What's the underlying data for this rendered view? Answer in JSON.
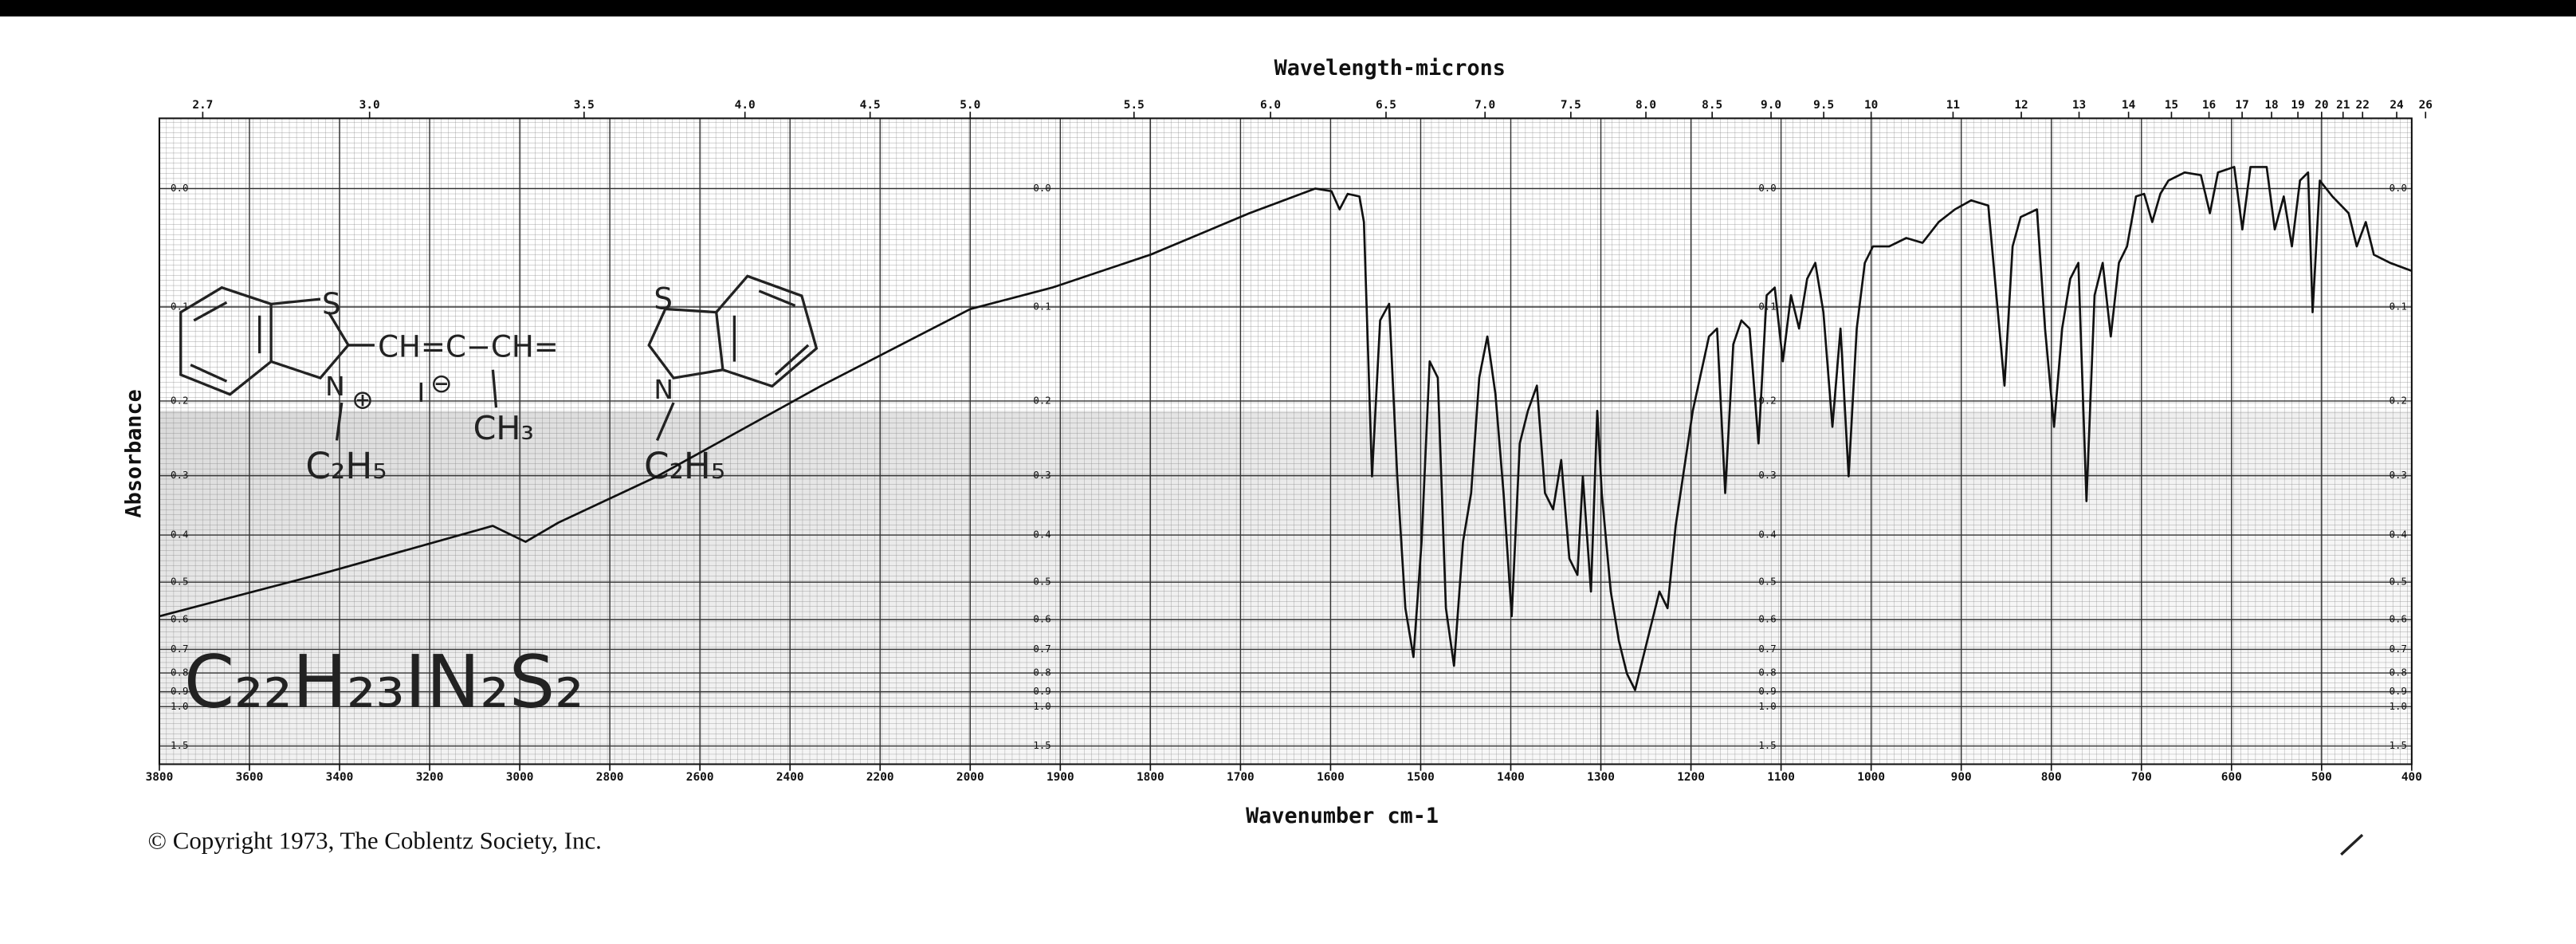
{
  "chart_data": {
    "type": "line",
    "title": "Wavelength-microns",
    "xlabel": "Wavenumber cm-1",
    "ylabel": "Absorbance",
    "footer": "© Copyright 1973, The Coblentz Society, Inc.",
    "structure": {
      "sulfur": "S",
      "nitrogen": "N",
      "cation": "⊕",
      "anion": "⊖",
      "iodide": "I",
      "bridge": "CH=C−CH=",
      "methyl": "CH₃",
      "ethyl": "C₂H₅",
      "formula": "C₂₂H₂₃IN₂S₂"
    },
    "color": "#111111",
    "grid": true,
    "xlim": [
      3800,
      400
    ],
    "xscale_break": 2000,
    "xticks": [
      3800,
      3600,
      3400,
      3200,
      3000,
      2800,
      2600,
      2400,
      2200,
      2000,
      1900,
      1800,
      1700,
      1600,
      1500,
      1400,
      1300,
      1200,
      1100,
      1000,
      900,
      800,
      700,
      600,
      500,
      400
    ],
    "x2ticks": [
      2.7,
      {
        "value": 3,
        "label": "3.0"
      },
      3.5,
      {
        "value": 4,
        "label": "4.0"
      },
      4.5,
      {
        "value": 5,
        "label": "5.0"
      },
      5.5,
      {
        "value": 6,
        "label": "6.0"
      },
      6.5,
      {
        "value": 7,
        "label": "7.0"
      },
      7.5,
      {
        "value": 8,
        "label": "8.0"
      },
      8.5,
      {
        "value": 9,
        "label": "9.0"
      },
      9.5,
      10,
      11,
      12,
      13,
      14,
      15,
      16,
      17,
      18,
      19,
      20,
      21,
      22,
      24,
      26
    ],
    "yscale": "absorbance",
    "ylim": [
      -0.05,
      2
    ],
    "yticks": [
      {
        "value": 0,
        "label": "0.0"
      },
      0.1,
      0.2,
      0.3,
      0.4,
      0.5,
      0.6,
      0.7,
      0.8,
      0.9,
      {
        "value": 1,
        "label": "1.0"
      },
      1.5
    ],
    "x": [
      3800,
      3424,
      3060,
      2987,
      2914,
      2695,
      2330,
      2000,
      1909,
      1800,
      1690,
      1617,
      1599,
      1590,
      1581,
      1568,
      1563,
      1554,
      1545,
      1535,
      1526,
      1517,
      1508,
      1499,
      1490,
      1481,
      1472,
      1463,
      1453,
      1444,
      1435,
      1426,
      1417,
      1408,
      1399,
      1390,
      1381,
      1371,
      1362,
      1353,
      1344,
      1335,
      1326,
      1320,
      1311,
      1304,
      1299,
      1289,
      1280,
      1271,
      1262,
      1253,
      1244,
      1235,
      1226,
      1217,
      1198,
      1180,
      1171,
      1162,
      1153,
      1144,
      1135,
      1125,
      1116,
      1107,
      1098,
      1089,
      1080,
      1071,
      1062,
      1053,
      1043,
      1034,
      1025,
      1016,
      1007,
      998,
      980,
      961,
      943,
      925,
      907,
      889,
      870,
      861,
      852,
      843,
      834,
      816,
      807,
      797,
      788,
      779,
      770,
      761,
      752,
      743,
      734,
      725,
      716,
      706,
      697,
      688,
      679,
      670,
      652,
      634,
      624,
      615,
      597,
      588,
      579,
      561,
      552,
      542,
      533,
      524,
      515,
      510,
      502,
      488,
      470,
      461,
      451,
      442,
      424,
      400
    ],
    "values": [
      0.59,
      0.476,
      0.383,
      0.413,
      0.377,
      0.301,
      0.182,
      0.102,
      0.082,
      0.053,
      0.019,
      0,
      0.002,
      0.016,
      0.004,
      0.006,
      0.026,
      0.301,
      0.113,
      0.097,
      0.301,
      0.567,
      0.73,
      0.413,
      0.155,
      0.173,
      0.567,
      0.767,
      0.413,
      0.327,
      0.173,
      0.129,
      0.192,
      0.327,
      0.59,
      0.254,
      0.212,
      0.182,
      0.327,
      0.354,
      0.277,
      0.447,
      0.483,
      0.301,
      0.523,
      0.212,
      0.327,
      0.523,
      0.669,
      0.804,
      0.89,
      0.73,
      0.614,
      0.523,
      0.567,
      0.383,
      0.212,
      0.129,
      0.121,
      0.327,
      0.137,
      0.113,
      0.121,
      0.254,
      0.089,
      0.082,
      0.155,
      0.089,
      0.121,
      0.074,
      0.06,
      0.105,
      0.232,
      0.121,
      0.301,
      0.121,
      0.06,
      0.046,
      0.046,
      0.039,
      0.043,
      0.026,
      0.016,
      0.009,
      0.013,
      0.089,
      0.182,
      0.046,
      0.022,
      0.016,
      0.121,
      0.232,
      0.121,
      0.074,
      0.06,
      0.34,
      0.089,
      0.06,
      0.129,
      0.06,
      0.046,
      0.006,
      0.004,
      0.026,
      0.004,
      -0.006,
      -0.012,
      -0.01,
      0.019,
      -0.012,
      -0.016,
      0.032,
      -0.016,
      -0.016,
      0.032,
      0.006,
      0.046,
      -0.006,
      -0.012,
      0.105,
      -0.006,
      0.006,
      0.019,
      0.046,
      0.026,
      0.053,
      0.06,
      0.067
    ]
  }
}
